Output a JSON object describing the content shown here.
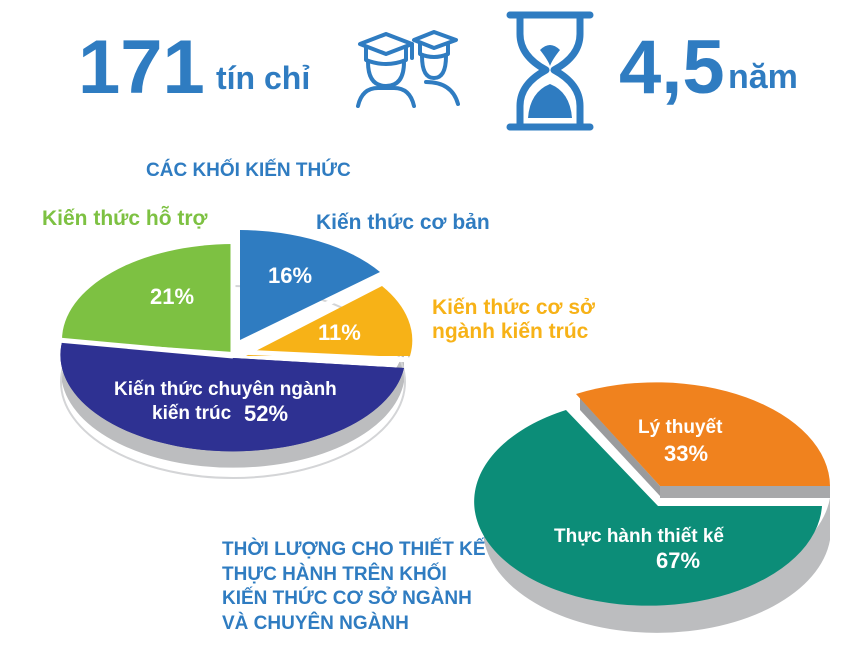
{
  "header": {
    "credits_value": "171",
    "credits_unit": "tín chỉ",
    "duration_value": "4,5",
    "duration_unit": "năm"
  },
  "colors": {
    "blue": "#2f7cc1",
    "yellow": "#f7b217",
    "green": "#7dc142",
    "navy": "#2e3192",
    "orange": "#f0821e",
    "teal": "#0c8d78"
  },
  "icons": [
    "graduates-icon",
    "hourglass-icon"
  ],
  "chart_data": [
    {
      "type": "pie",
      "title": "CÁC KHỐI KIẾN THỨC",
      "slices": [
        {
          "label": "Kiến thức cơ bản",
          "value": 16,
          "value_label": "16%",
          "color": "#2f7cc1"
        },
        {
          "label": "Kiến thức cơ sở ngành kiến trúc",
          "value": 11,
          "value_label": "11%",
          "color": "#f7b217"
        },
        {
          "label": "Kiến thức chuyên ngành kiến trúc",
          "value": 52,
          "value_label": "52%",
          "color": "#2e3192"
        },
        {
          "label": "Kiến thức hỗ trợ",
          "value": 21,
          "value_label": "21%",
          "color": "#7dc142"
        }
      ],
      "labels": {
        "basic": "Kiến thức cơ bản",
        "foundation_line1": "Kiến thức cơ sở",
        "foundation_line2": "ngành kiến trúc",
        "major_line1": "Kiến thức chuyên ngành",
        "major_line2": "kiến trúc",
        "support": "Kiến thức hỗ trợ"
      }
    },
    {
      "type": "pie",
      "title_lines": [
        "THỜI LƯỢNG CHO THIẾT KẾ",
        "THỰC HÀNH TRÊN KHỐI",
        "KIẾN THỨC CƠ SỞ NGÀNH",
        "VÀ CHUYÊN NGÀNH"
      ],
      "slices": [
        {
          "label": "Lý thuyết",
          "value": 33,
          "value_label": "33%",
          "color": "#f0821e"
        },
        {
          "label": "Thực hành thiết kế",
          "value": 67,
          "value_label": "67%",
          "color": "#0c8d78"
        }
      ]
    }
  ]
}
